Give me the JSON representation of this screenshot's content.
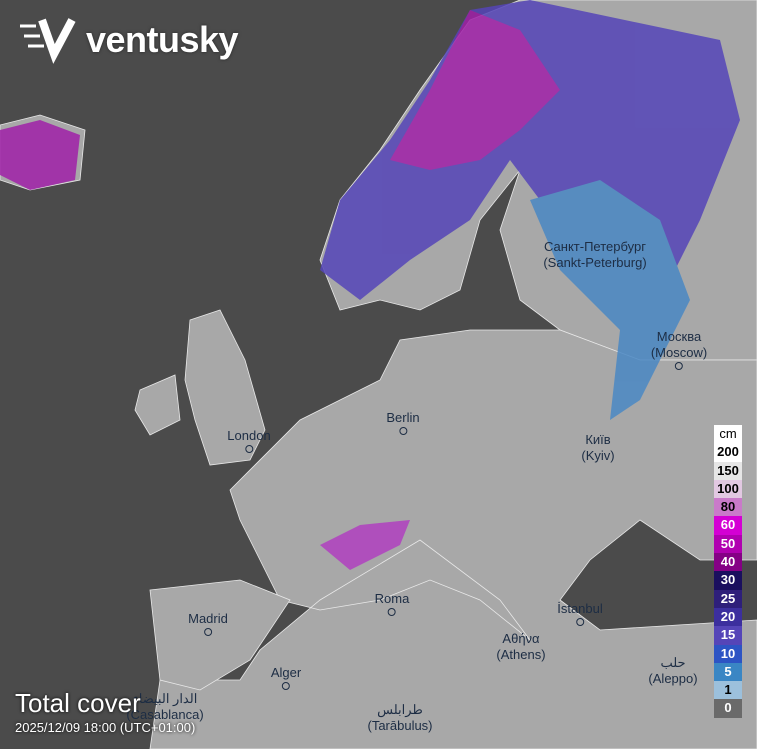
{
  "brand": {
    "name": "ventusky"
  },
  "layer": {
    "title": "Total cover",
    "datetime": "2025/12/09 18:00 (UTC+01:00)"
  },
  "cities": [
    {
      "name": "Санкт-Петербург",
      "sub": "(Sankt-Peterburg)"
    },
    {
      "name": "Москва",
      "sub": "(Moscow)"
    },
    {
      "name": "Berlin",
      "sub": ""
    },
    {
      "name": "London",
      "sub": ""
    },
    {
      "name": "Київ",
      "sub": "(Kyiv)"
    },
    {
      "name": "Madrid",
      "sub": ""
    },
    {
      "name": "Roma",
      "sub": ""
    },
    {
      "name": "İstanbul",
      "sub": ""
    },
    {
      "name": "Αθήνα",
      "sub": "(Athens)"
    },
    {
      "name": "Alger",
      "sub": ""
    },
    {
      "name": "حلب",
      "sub": "(Aleppo)"
    },
    {
      "name": "الدار البيضاء",
      "sub": "(Casablanca)"
    },
    {
      "name": "طرابلس",
      "sub": "(Tarābulus)"
    }
  ],
  "legend": {
    "unit": "cm",
    "items": [
      {
        "label": "200",
        "color": "#ffffff",
        "text": "#000"
      },
      {
        "label": "150",
        "color": "#e6e6e6",
        "text": "#000"
      },
      {
        "label": "100",
        "color": "#e2c8e2",
        "text": "#000"
      },
      {
        "label": "80",
        "color": "#c97ac9",
        "text": "#000"
      },
      {
        "label": "60",
        "color": "#d400d4",
        "text": "#fff"
      },
      {
        "label": "50",
        "color": "#b000b0",
        "text": "#fff"
      },
      {
        "label": "40",
        "color": "#850085",
        "text": "#fff"
      },
      {
        "label": "30",
        "color": "#1a0f5e",
        "text": "#fff"
      },
      {
        "label": "25",
        "color": "#2e1f7a",
        "text": "#fff"
      },
      {
        "label": "20",
        "color": "#3c2f9e",
        "text": "#fff"
      },
      {
        "label": "15",
        "color": "#5545b8",
        "text": "#fff"
      },
      {
        "label": "10",
        "color": "#2d54c4",
        "text": "#fff"
      },
      {
        "label": "5",
        "color": "#3a86c4",
        "text": "#fff"
      },
      {
        "label": "1",
        "color": "#9cc0dc",
        "text": "#000"
      },
      {
        "label": "0",
        "color": "#6a6a6a",
        "text": "#fff"
      }
    ]
  }
}
